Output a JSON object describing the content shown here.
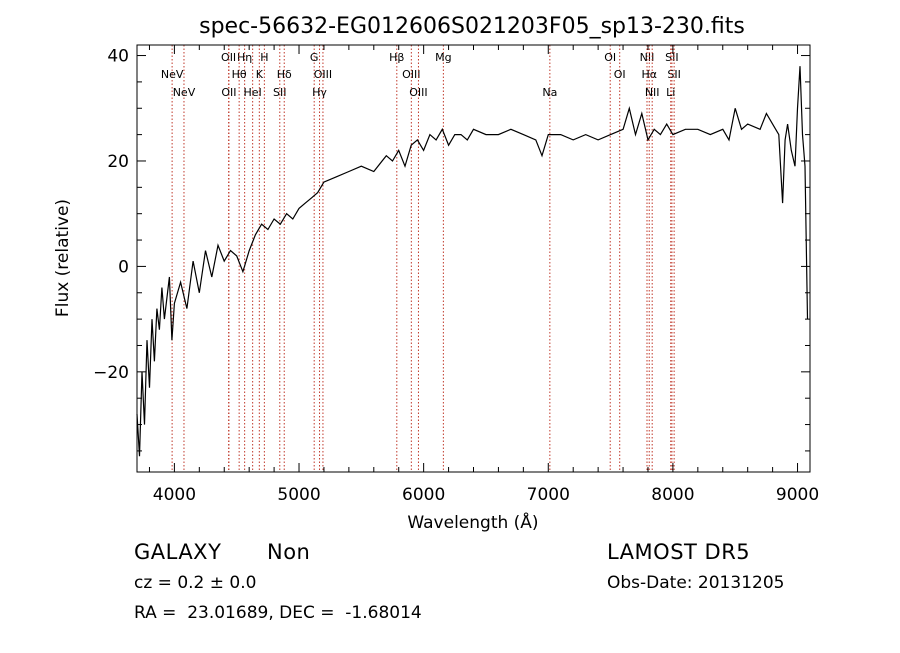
{
  "chart_data": {
    "type": "line",
    "title": "spec-56632-EG012606S021203F05_sp13-230.fits",
    "xlabel": "Wavelength (Å)",
    "ylabel": "Flux (relative)",
    "xlim": [
      3700,
      9100
    ],
    "ylim": [
      -39,
      42
    ],
    "x_ticks": [
      4000,
      5000,
      6000,
      7000,
      8000,
      9000
    ],
    "y_ticks": [
      -20,
      0,
      20,
      40
    ],
    "grid": false,
    "series": [
      {
        "x": [
          3700,
          3720,
          3740,
          3760,
          3780,
          3800,
          3820,
          3840,
          3860,
          3880,
          3900,
          3920,
          3940,
          3960,
          3980,
          4000,
          4050,
          4100,
          4150,
          4200,
          4250,
          4300,
          4350,
          4400,
          4450,
          4500,
          4550,
          4600,
          4650,
          4700,
          4750,
          4800,
          4850,
          4900,
          4950,
          5000,
          5050,
          5100,
          5150,
          5200,
          5300,
          5400,
          5500,
          5600,
          5700,
          5750,
          5800,
          5850,
          5900,
          5950,
          6000,
          6050,
          6100,
          6150,
          6200,
          6250,
          6300,
          6350,
          6400,
          6500,
          6600,
          6700,
          6800,
          6900,
          6950,
          7000,
          7100,
          7200,
          7300,
          7400,
          7500,
          7600,
          7650,
          7700,
          7750,
          7800,
          7850,
          7900,
          7950,
          8000,
          8100,
          8200,
          8300,
          8400,
          8450,
          8500,
          8550,
          8600,
          8700,
          8750,
          8800,
          8850,
          8880,
          8900,
          8920,
          8950,
          8980,
          9000,
          9020,
          9040,
          9060,
          9080
        ],
        "y": [
          -28,
          -36,
          -20,
          -30,
          -14,
          -23,
          -10,
          -18,
          -8,
          -12,
          -4,
          -10,
          -6,
          -2,
          -14,
          -7,
          -3,
          -8,
          1,
          -5,
          3,
          -2,
          4,
          1,
          3,
          2,
          -1,
          3,
          6,
          8,
          7,
          9,
          8,
          10,
          9,
          11,
          12,
          13,
          14,
          16,
          17,
          18,
          19,
          18,
          21,
          20,
          22,
          19,
          23,
          24,
          22,
          25,
          24,
          26,
          23,
          25,
          25,
          24,
          26,
          25,
          25,
          26,
          25,
          24,
          21,
          25,
          25,
          24,
          25,
          24,
          25,
          26,
          30,
          25,
          29,
          24,
          26,
          25,
          27,
          25,
          26,
          26,
          25,
          26,
          24,
          30,
          26,
          27,
          26,
          29,
          27,
          25,
          12,
          24,
          27,
          22,
          19,
          30,
          38,
          25,
          19,
          -10
        ]
      }
    ],
    "line_markers": [
      {
        "label": "NeV",
        "wl": 3426,
        "row": 2
      },
      {
        "label": "NeV",
        "wl": 3346,
        "row": 1
      },
      {
        "label": "OII",
        "wl": 3727,
        "row": 0
      },
      {
        "label": "OII",
        "wl": 3729,
        "row": 2
      },
      {
        "label": "Hη",
        "wl": 3835,
        "row": 0
      },
      {
        "label": "Hθ",
        "wl": 3798,
        "row": 1
      },
      {
        "label": "HeI",
        "wl": 3889,
        "row": 2
      },
      {
        "label": "H",
        "wl": 3968,
        "row": 0
      },
      {
        "label": "K",
        "wl": 3934,
        "row": 1
      },
      {
        "label": "SII",
        "wl": 4072,
        "row": 2
      },
      {
        "label": "Hδ",
        "wl": 4102,
        "row": 1
      },
      {
        "label": "G",
        "wl": 4304,
        "row": 0
      },
      {
        "label": "OIII",
        "wl": 4363,
        "row": 1
      },
      {
        "label": "Hγ",
        "wl": 4340,
        "row": 2
      },
      {
        "label": "Hβ",
        "wl": 4861,
        "row": 0
      },
      {
        "label": "OIII",
        "wl": 4959,
        "row": 1
      },
      {
        "label": "OIII",
        "wl": 5007,
        "row": 2
      },
      {
        "label": "Mg",
        "wl": 5175,
        "row": 0
      },
      {
        "label": "Na",
        "wl": 5893,
        "row": 2
      },
      {
        "label": "OI",
        "wl": 6300,
        "row": 0
      },
      {
        "label": "OI",
        "wl": 6364,
        "row": 1
      },
      {
        "label": "NII",
        "wl": 6548,
        "row": 0
      },
      {
        "label": "Hα",
        "wl": 6563,
        "row": 1
      },
      {
        "label": "NII",
        "wl": 6583,
        "row": 2
      },
      {
        "label": "SII",
        "wl": 6716,
        "row": 0
      },
      {
        "label": "SII",
        "wl": 6731,
        "row": 1
      },
      {
        "label": "Li",
        "wl": 6708,
        "row": 2
      }
    ]
  },
  "info": {
    "object_class": "GALAXY",
    "subclass": "Non",
    "survey": "LAMOST DR5",
    "cz": "cz = 0.2 ± 0.0",
    "obs_date": "Obs-Date: 20131205",
    "coords": "RA =  23.01689, DEC =  -1.68014"
  },
  "colors": {
    "spectrum": "#000000",
    "marker_line": "#c0392b",
    "axes": "#000000"
  }
}
